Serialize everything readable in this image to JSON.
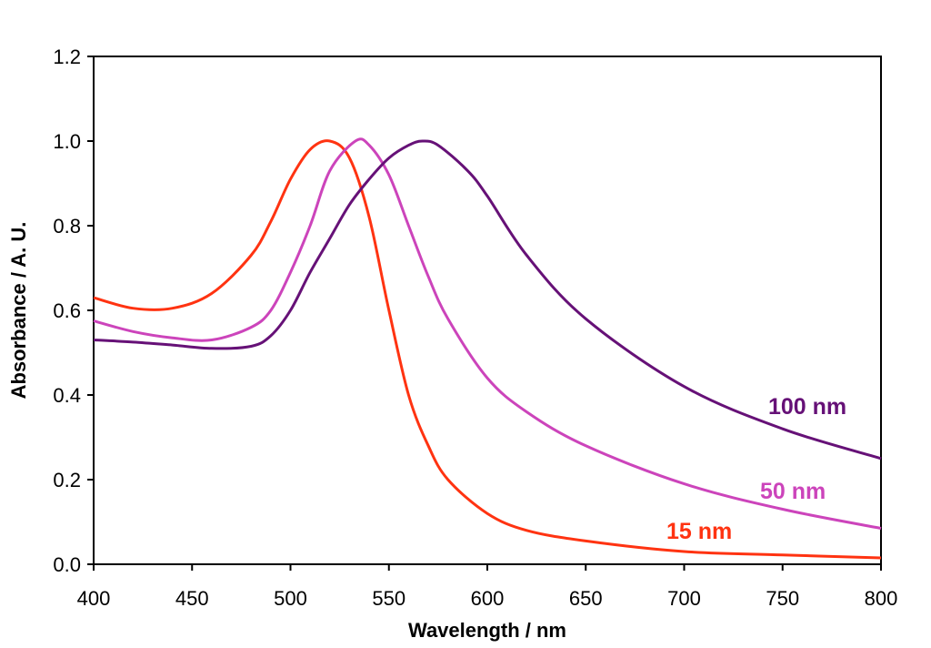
{
  "chart_data": {
    "type": "line",
    "title": "",
    "xlabel": "Wavelength / nm",
    "ylabel": "Absorbance / A. U.",
    "xlim": [
      400,
      800
    ],
    "ylim": [
      0,
      1.2
    ],
    "x_ticks": [
      "400",
      "450",
      "500",
      "550",
      "600",
      "650",
      "700",
      "750",
      "800"
    ],
    "y_ticks": [
      "0.0",
      "0.2",
      "0.4",
      "0.6",
      "0.8",
      "1.0",
      "1.2"
    ],
    "grid": false,
    "legend": "none",
    "series": [
      {
        "name": "15 nm",
        "color": "#ff3311",
        "x": [
          400,
          420,
          440,
          460,
          480,
          490,
          500,
          510,
          520,
          530,
          540,
          550,
          560,
          570,
          580,
          600,
          620,
          650,
          700,
          750,
          800
        ],
        "y": [
          0.63,
          0.605,
          0.605,
          0.64,
          0.73,
          0.81,
          0.91,
          0.98,
          1.0,
          0.96,
          0.82,
          0.6,
          0.4,
          0.28,
          0.2,
          0.12,
          0.08,
          0.055,
          0.03,
          0.022,
          0.015
        ]
      },
      {
        "name": "50 nm",
        "color": "#cc44bb",
        "x": [
          400,
          420,
          440,
          460,
          480,
          490,
          500,
          510,
          520,
          533,
          540,
          550,
          560,
          570,
          580,
          600,
          620,
          650,
          700,
          750,
          800
        ],
        "y": [
          0.575,
          0.55,
          0.535,
          0.53,
          0.56,
          0.6,
          0.69,
          0.8,
          0.93,
          1.0,
          0.99,
          0.92,
          0.8,
          0.68,
          0.58,
          0.44,
          0.36,
          0.28,
          0.19,
          0.13,
          0.085
        ]
      },
      {
        "name": "100 nm",
        "color": "#661177",
        "x": [
          400,
          420,
          440,
          460,
          480,
          490,
          500,
          510,
          520,
          530,
          540,
          550,
          560,
          567,
          575,
          590,
          600,
          620,
          650,
          700,
          750,
          800
        ],
        "y": [
          0.53,
          0.525,
          0.518,
          0.51,
          0.515,
          0.54,
          0.6,
          0.69,
          0.77,
          0.85,
          0.91,
          0.96,
          0.99,
          1.0,
          0.99,
          0.93,
          0.87,
          0.73,
          0.58,
          0.42,
          0.32,
          0.25
        ]
      }
    ]
  }
}
